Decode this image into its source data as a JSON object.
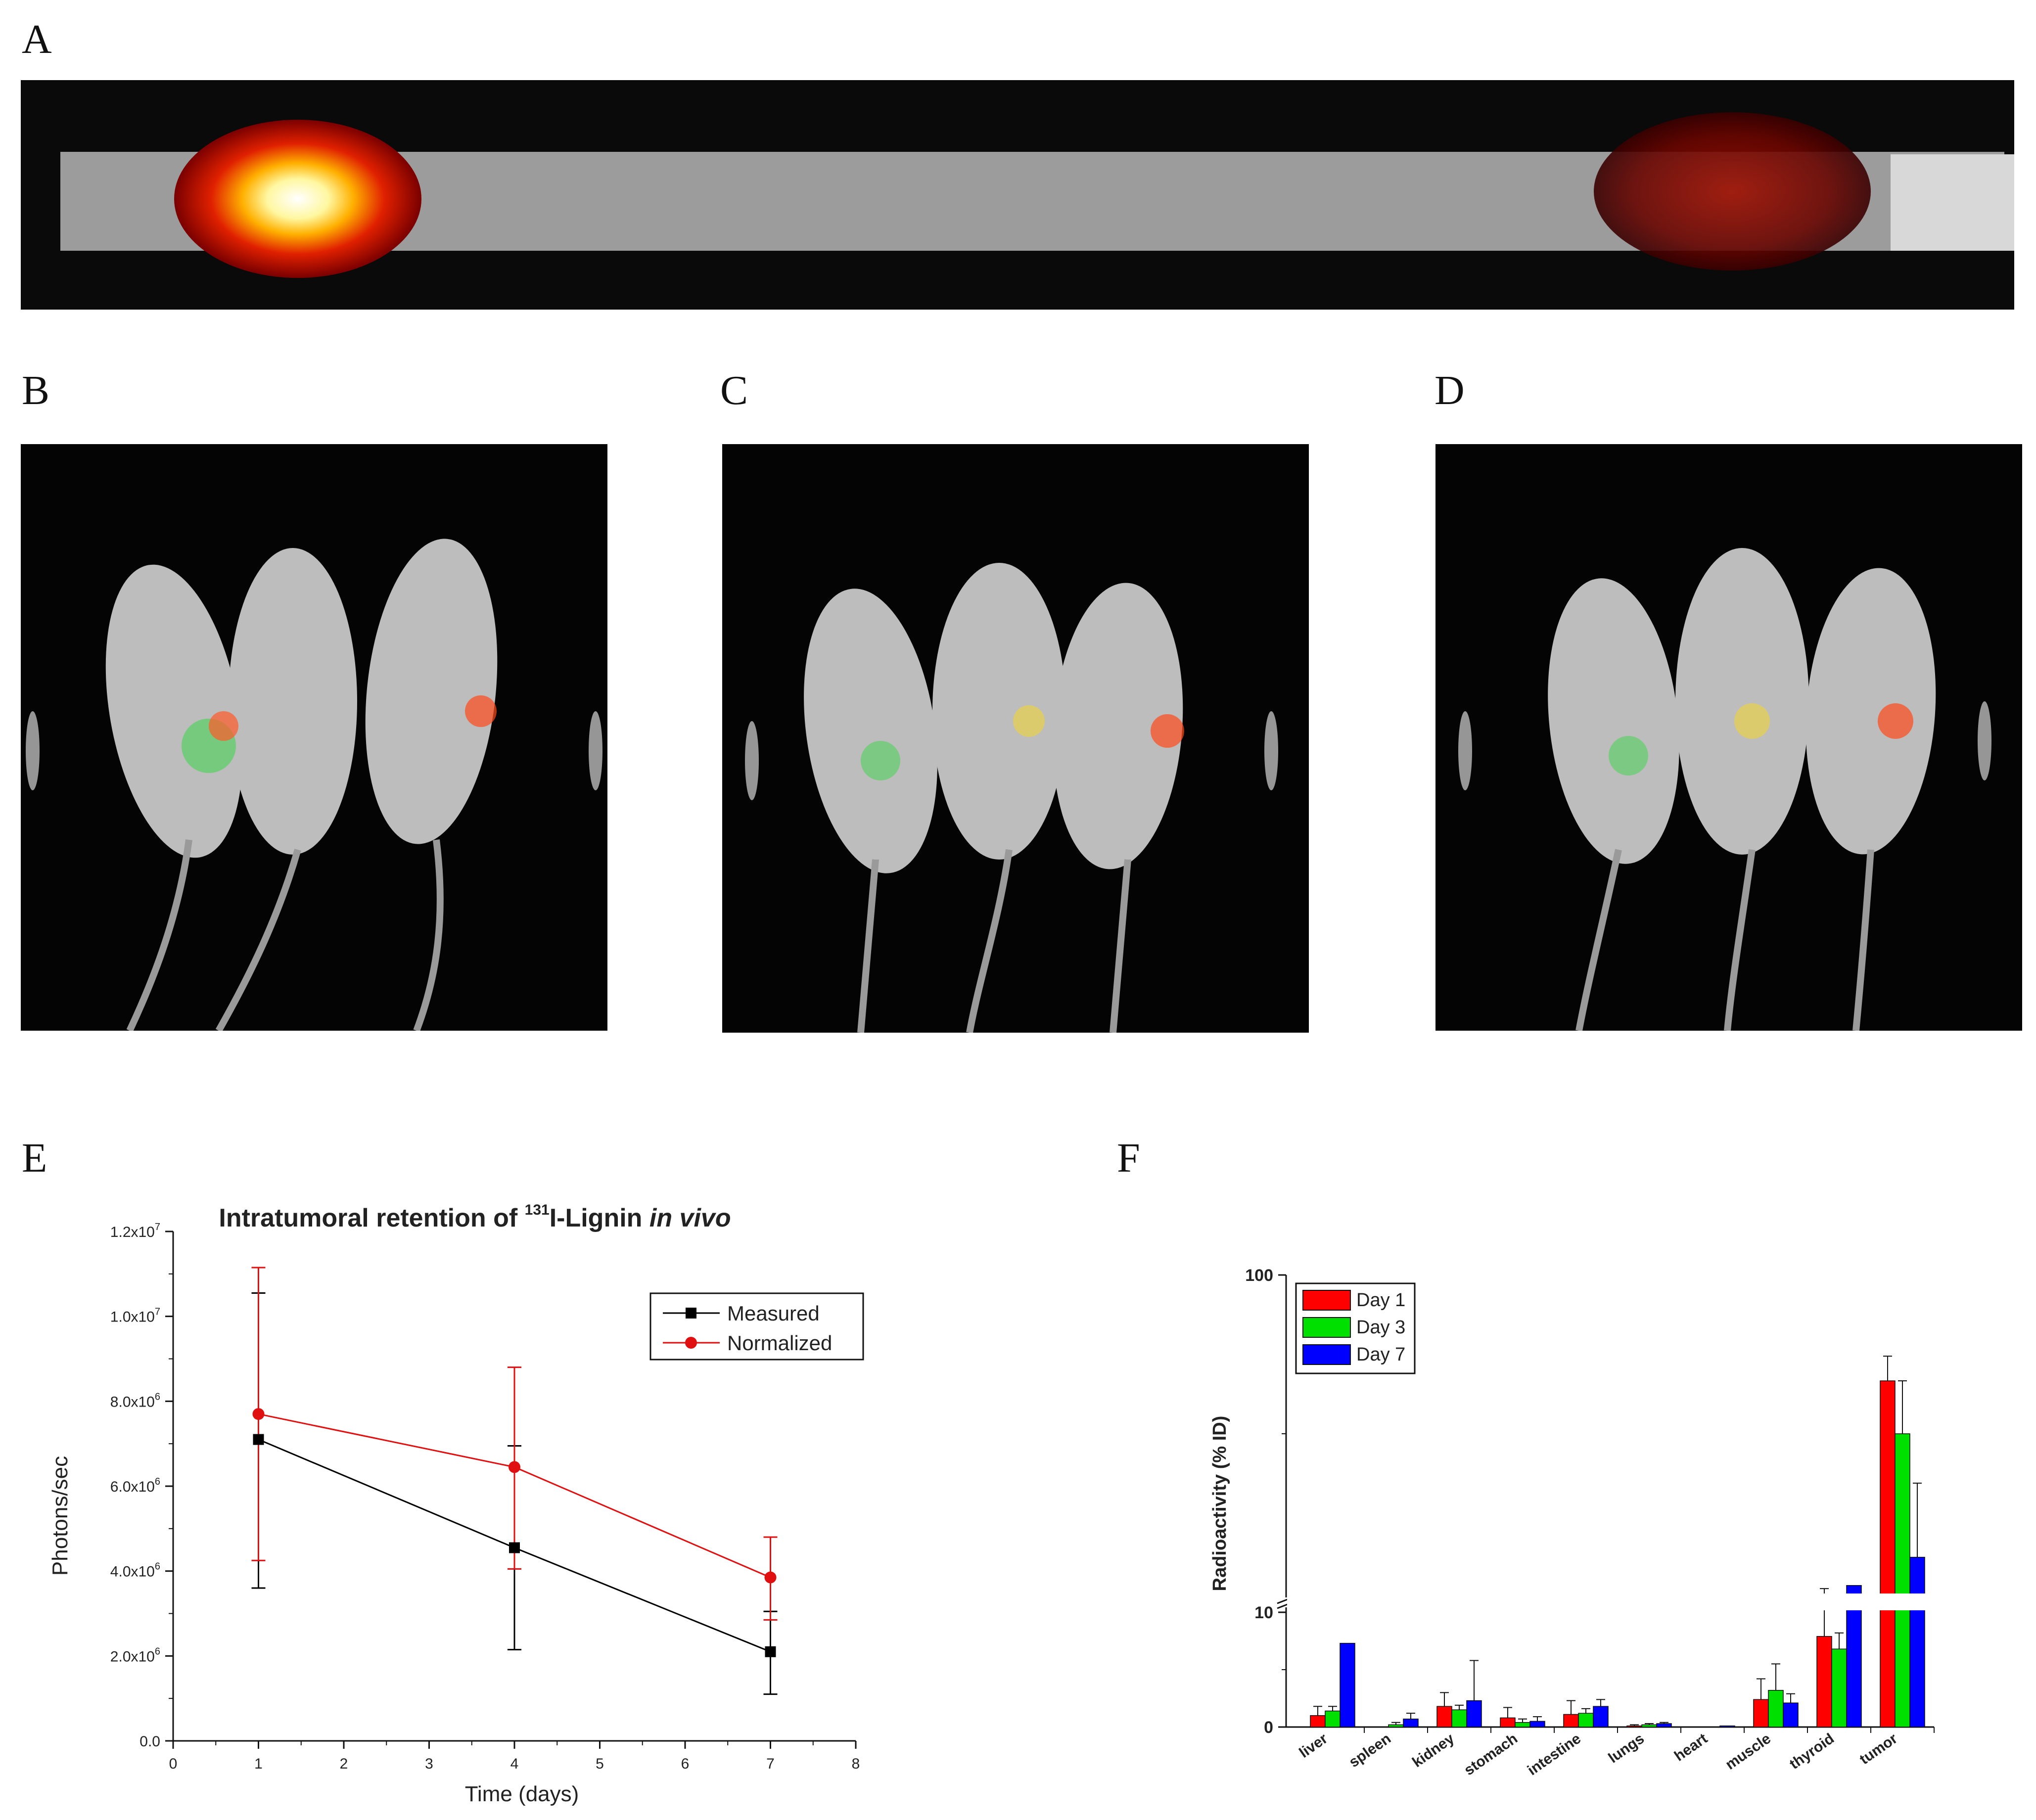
{
  "panels": {
    "A": "A",
    "B": "B",
    "C": "C",
    "D": "D",
    "E": "E",
    "F": "F"
  },
  "chart_data": [
    {
      "panel": "E",
      "type": "line",
      "title_prefix": "Intratumoral retention of ",
      "title_superscript": "131",
      "title_middle": "I-Lignin ",
      "title_italic": "in vivo",
      "xlabel": "Time (days)",
      "ylabel": "Photons/sec",
      "xlim": [
        0,
        8
      ],
      "ylim": [
        0,
        12000000
      ],
      "x_ticks": [
        "0",
        "1",
        "2",
        "3",
        "4",
        "5",
        "6",
        "7",
        "8"
      ],
      "y_ticks": [
        {
          "value": 0,
          "base": "0.0",
          "exp": ""
        },
        {
          "value": 2000000,
          "base": "2.0x10",
          "exp": "6"
        },
        {
          "value": 4000000,
          "base": "4.0x10",
          "exp": "6"
        },
        {
          "value": 6000000,
          "base": "6.0x10",
          "exp": "6"
        },
        {
          "value": 8000000,
          "base": "8.0x10",
          "exp": "6"
        },
        {
          "value": 10000000,
          "base": "1.0x10",
          "exp": "7"
        },
        {
          "value": 12000000,
          "base": "1.2x10",
          "exp": "7"
        }
      ],
      "legend_position": "top-right",
      "series": [
        {
          "name": "Measured",
          "color": "#000000",
          "marker": "square",
          "x": [
            1,
            4,
            7
          ],
          "y": [
            7100000,
            4550000,
            2100000
          ],
          "err_low": [
            3600000,
            2150000,
            1100000
          ],
          "err_high": [
            10550000,
            6950000,
            3050000
          ]
        },
        {
          "name": "Normalized",
          "color": "#e01010",
          "marker": "circle",
          "x": [
            1,
            4,
            7
          ],
          "y": [
            7700000,
            6450000,
            3850000
          ],
          "err_low": [
            4250000,
            4050000,
            2850000
          ],
          "err_high": [
            11150000,
            8800000,
            4800000
          ]
        }
      ]
    },
    {
      "panel": "F",
      "type": "bar",
      "ylabel": "Radioactivity (% ID)",
      "axis_break": [
        10,
        100
      ],
      "y_ticks": [
        "0",
        "10",
        "100"
      ],
      "legend_position": "top-left",
      "categories": [
        "liver",
        "spleen",
        "kidney",
        "stomach",
        "intestine",
        "lungs",
        "heart",
        "muscle",
        "thyroid",
        "tumor"
      ],
      "series": [
        {
          "name": "Day 1",
          "color": "#ff0000",
          "values": [
            1.0,
            0.0,
            1.8,
            0.8,
            1.1,
            0.1,
            0.0,
            2.4,
            7.9,
            70.0
          ],
          "errors": [
            0.8,
            0.0,
            1.2,
            0.9,
            1.2,
            0.1,
            0.0,
            1.8,
            3.2,
            7.0
          ]
        },
        {
          "name": "Day 3",
          "color": "#00e000",
          "values": [
            1.4,
            0.2,
            1.5,
            0.4,
            1.2,
            0.2,
            0.0,
            3.2,
            6.8,
            55.0
          ],
          "errors": [
            0.4,
            0.2,
            0.4,
            0.3,
            0.4,
            0.1,
            0.0,
            2.3,
            1.4,
            15.0
          ]
        },
        {
          "name": "Day 7",
          "color": "#0000ff",
          "values": [
            7.3,
            0.7,
            2.3,
            0.5,
            1.8,
            0.3,
            0.1,
            2.1,
            12.0,
            20.0
          ],
          "errors": [
            0.0,
            0.5,
            3.5,
            0.4,
            0.6,
            0.1,
            0.0,
            0.8,
            0.0,
            21.0
          ]
        }
      ]
    }
  ]
}
